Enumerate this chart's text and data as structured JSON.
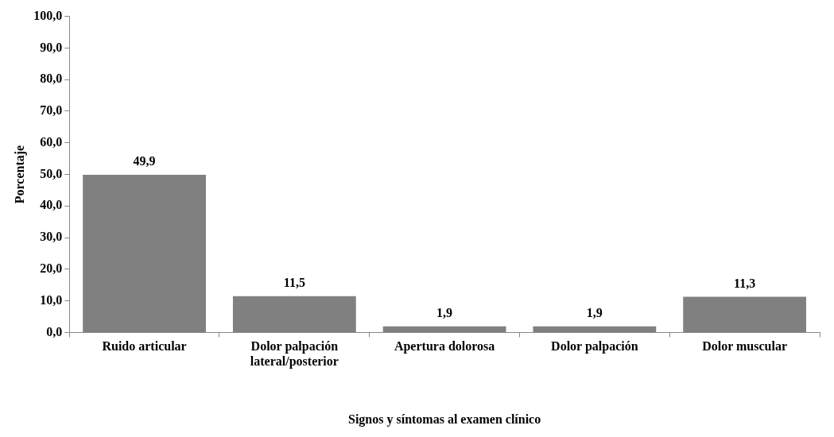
{
  "chart_data": {
    "type": "bar",
    "xlabel": "Signos y síntomas al examen clínico",
    "ylabel": "Porcentaje",
    "categories": [
      "Ruido articular",
      "Dolor palpación lateral/posterior",
      "Apertura dolorosa",
      "Dolor palpación",
      "Dolor muscular"
    ],
    "values": [
      49.9,
      11.5,
      1.9,
      1.9,
      11.3
    ],
    "value_labels": [
      "49,9",
      "11,5",
      "1,9",
      "1,9",
      "11,3"
    ],
    "color": "#808080",
    "ylim": [
      0,
      100
    ],
    "yticks": [
      {
        "value": 0,
        "label": "0,0"
      },
      {
        "value": 10,
        "label": "10,0"
      },
      {
        "value": 20,
        "label": "20,0"
      },
      {
        "value": 30,
        "label": "30,0"
      },
      {
        "value": 40,
        "label": "40,0"
      },
      {
        "value": 50,
        "label": "50,0"
      },
      {
        "value": 60,
        "label": "60,0"
      },
      {
        "value": 70,
        "label": "70,0"
      },
      {
        "value": 80,
        "label": "80,0"
      },
      {
        "value": 90,
        "label": "90,0"
      },
      {
        "value": 100,
        "label": "100,0"
      }
    ],
    "grid": false,
    "legend": false
  }
}
